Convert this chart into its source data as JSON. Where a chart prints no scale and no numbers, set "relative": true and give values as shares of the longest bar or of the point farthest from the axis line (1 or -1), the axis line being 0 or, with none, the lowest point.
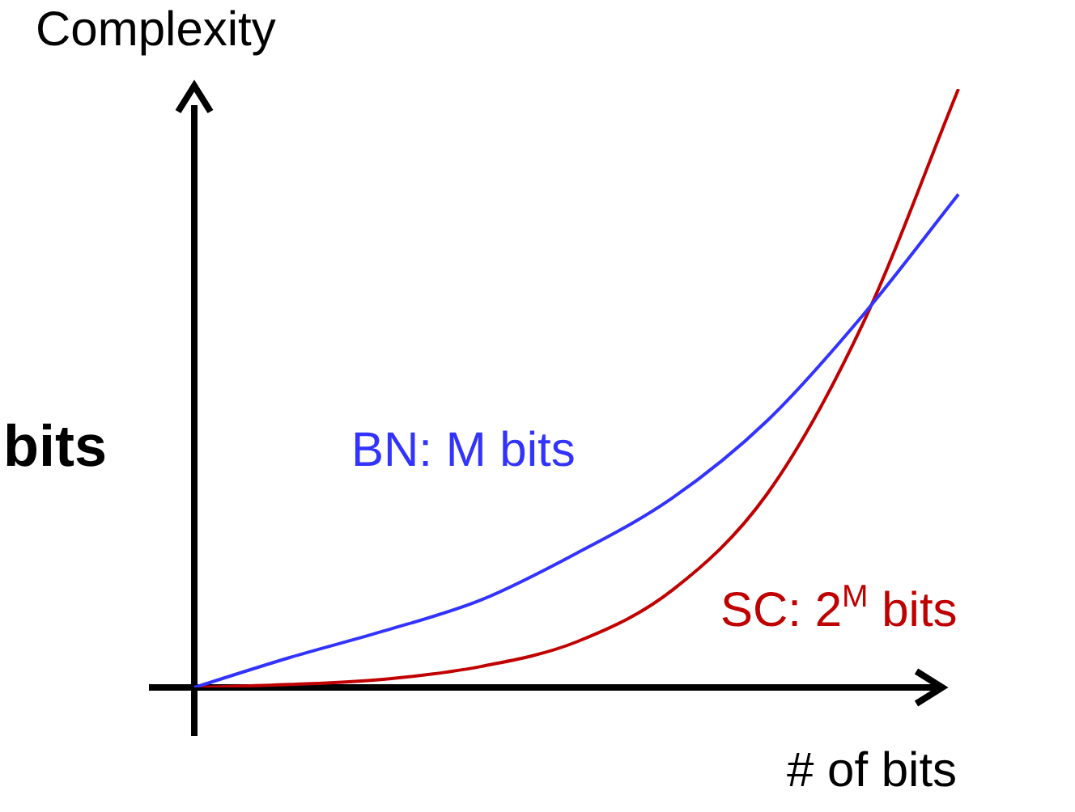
{
  "chart_data": {
    "type": "line",
    "relative": true,
    "marker": "none",
    "xlabel": "# of bits",
    "ylabel": "Complexity",
    "annotations": [
      "bits"
    ],
    "categories": [
      null,
      null,
      null,
      null,
      null,
      null,
      null,
      null,
      null
    ],
    "series": [
      {
        "name": "BN: M bits",
        "color": "#3333ff",
        "values": [
          0,
          0.05,
          0.095,
          0.146,
          0.224,
          0.316,
          0.446,
          0.622,
          0.824
        ]
      },
      {
        "name": "SC: 2$^{M}$ bits",
        "color": "#c00000",
        "values": [
          0,
          0.005,
          0.014,
          0.035,
          0.076,
          0.162,
          0.324,
          0.608,
          1
        ]
      }
    ]
  }
}
